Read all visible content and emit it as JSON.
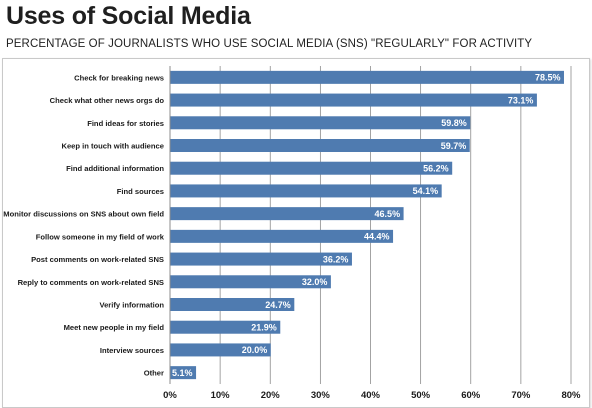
{
  "header": {
    "title": "Uses of Social Media",
    "subtitle": "PERCENTAGE OF JOURNALISTS WHO USE SOCIAL MEDIA (SNS) \"REGULARLY\" FOR ACTIVITY"
  },
  "chart_data": {
    "type": "bar",
    "orientation": "horizontal",
    "title": "Uses of Social Media",
    "subtitle": "PERCENTAGE OF JOURNALISTS WHO USE SOCIAL MEDIA (SNS) \"REGULARLY\" FOR ACTIVITY",
    "categories": [
      "Check for breaking news",
      "Check what other news orgs do",
      "Find ideas for stories",
      "Keep in touch with audience",
      "Find additional information",
      "Find sources",
      "Monitor discussions on SNS about own field",
      "Follow someone in my field of work",
      "Post comments on work-related SNS",
      "Reply to comments on work-related SNS",
      "Verify information",
      "Meet new people in my field",
      "Interview sources",
      "Other"
    ],
    "values": [
      78.5,
      73.1,
      59.8,
      59.7,
      56.2,
      54.1,
      46.5,
      44.4,
      36.2,
      32.0,
      24.7,
      21.9,
      20.0,
      5.1
    ],
    "value_labels": [
      "78.5%",
      "73.1%",
      "59.8%",
      "59.7%",
      "56.2%",
      "54.1%",
      "46.5%",
      "44.4%",
      "36.2%",
      "32.0%",
      "24.7%",
      "21.9%",
      "20.0%",
      "5.1%"
    ],
    "xticks": [
      "0%",
      "10%",
      "20%",
      "30%",
      "40%",
      "50%",
      "60%",
      "70%",
      "80%"
    ],
    "xlim": [
      0,
      80
    ],
    "xlabel": "",
    "ylabel": "",
    "grid": "vertical",
    "bar_color": "#4f7bb0",
    "grid_color": "#8c8c8c"
  }
}
